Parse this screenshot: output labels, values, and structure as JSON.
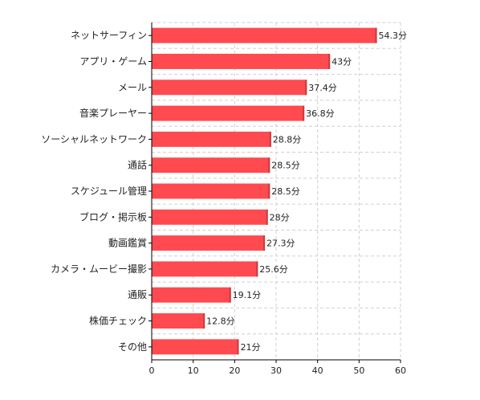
{
  "chart_data": {
    "type": "bar",
    "orientation": "horizontal",
    "categories": [
      "ネットサーフィン",
      "アプリ・ゲーム",
      "メール",
      "音楽プレーヤー",
      "ソーシャルネットワーク",
      "通話",
      "スケジュール管理",
      "ブログ・掲示板",
      "動画鑑賞",
      "カメラ・ムービー撮影",
      "通販",
      "株価チェック",
      "その他"
    ],
    "values": [
      54.3,
      43,
      37.4,
      36.8,
      28.8,
      28.5,
      28.5,
      28,
      27.3,
      25.6,
      19.1,
      12.8,
      21
    ],
    "value_labels": [
      "54.3分",
      "43分",
      "37.4分",
      "36.8分",
      "28.8分",
      "28.5分",
      "28.5分",
      "28分",
      "27.3分",
      "25.6分",
      "19.1分",
      "12.8分",
      "21分"
    ],
    "xlim": [
      0,
      60
    ],
    "x_ticks": [
      "0",
      "10",
      "20",
      "30",
      "40",
      "50",
      "60"
    ],
    "grid": true,
    "bar_color": "#ff4a4f",
    "bar_edge_color": "#c93a3e",
    "title": "",
    "xlabel": "",
    "ylabel": ""
  }
}
